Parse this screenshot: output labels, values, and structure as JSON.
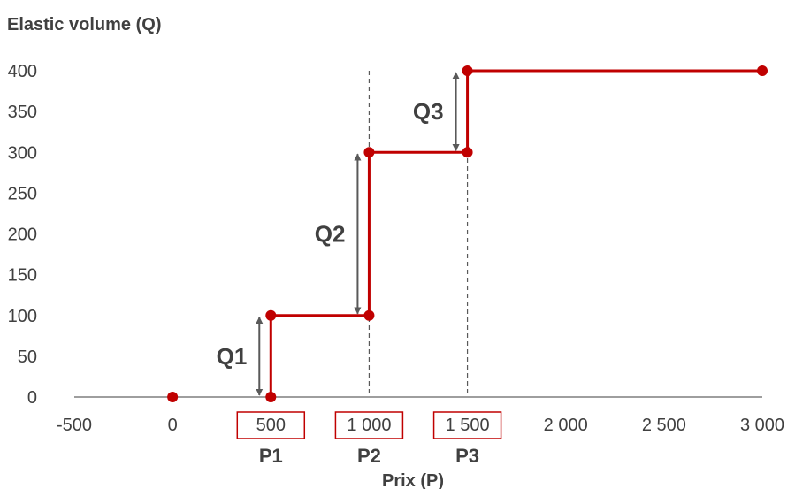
{
  "chart_data": {
    "type": "line",
    "title": "",
    "ylabel": "Elastic volume (Q)",
    "xlabel": "Prix (P)",
    "xlim": [
      -500,
      3000
    ],
    "ylim": [
      0,
      400
    ],
    "x_ticks": [
      -500,
      0,
      500,
      1000,
      1500,
      2000,
      2500,
      3000
    ],
    "x_tick_labels": [
      "-500",
      "0",
      "500",
      "1 000",
      "1 500",
      "2 000",
      "2 500",
      "3 000"
    ],
    "y_ticks": [
      0,
      50,
      100,
      150,
      200,
      250,
      300,
      350,
      400
    ],
    "y_tick_labels": [
      "0",
      "50",
      "100",
      "150",
      "200",
      "250",
      "300",
      "350",
      "400"
    ],
    "grid": false,
    "series": [
      {
        "color": "#c00000",
        "points": [
          [
            500,
            0
          ],
          [
            500,
            100
          ],
          [
            1000,
            100
          ],
          [
            1000,
            300
          ],
          [
            1500,
            300
          ],
          [
            1500,
            400
          ],
          [
            3000,
            400
          ]
        ]
      }
    ],
    "extra_points": [
      [
        0,
        0
      ]
    ],
    "boxed_ticks": [
      500,
      1000,
      1500
    ],
    "price_labels": [
      {
        "label": "P1",
        "x": 500
      },
      {
        "label": "P2",
        "x": 1000
      },
      {
        "label": "P3",
        "x": 1500
      }
    ],
    "dashed_vlines": [
      {
        "x": 1000,
        "y_top": 400
      },
      {
        "x": 1500,
        "y_top": 400
      }
    ],
    "quantity_arrows": [
      {
        "label": "Q1",
        "x": 500,
        "from": 0,
        "to": 100
      },
      {
        "label": "Q2",
        "x": 1000,
        "from": 100,
        "to": 300
      },
      {
        "label": "Q3",
        "x": 1500,
        "from": 300,
        "to": 400
      }
    ],
    "colors": {
      "line": "#c00000",
      "box": "#c00000",
      "arrow": "#595959",
      "axis": "#7f7f7f",
      "text": "#404040"
    }
  }
}
